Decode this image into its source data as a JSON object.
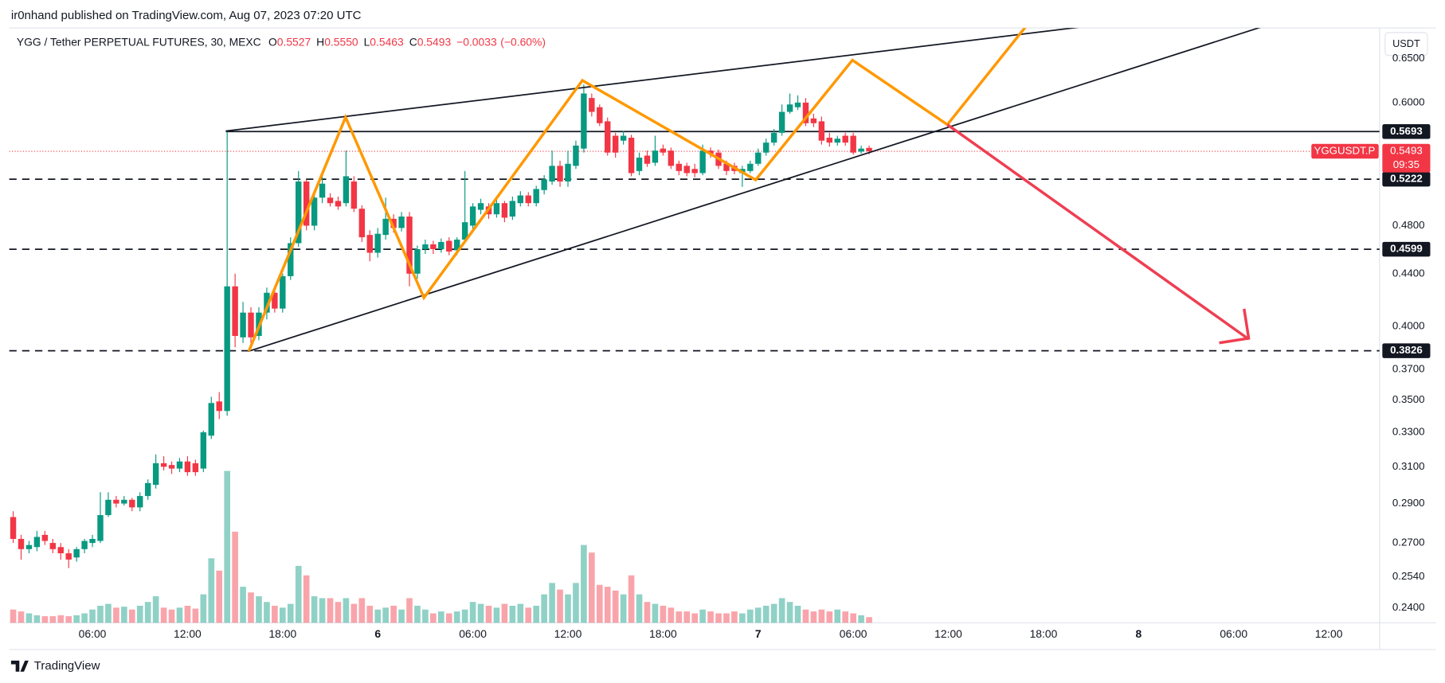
{
  "header": {
    "text": "ir0nhand published on TradingView.com, Aug 07, 2023 07:20 UTC"
  },
  "footer": {
    "logo": "TradingView"
  },
  "chart_data": {
    "type": "candlestick",
    "symbol": "YGG / Tether PERPETUAL FUTURES, 30, MEXC",
    "legend": [
      {
        "key": "O",
        "value": 0.5527
      },
      {
        "key": "H",
        "value": {
          "value": 0.555,
          "label": "0.5550"
        }
      },
      {
        "key": "L",
        "value": 0.5463
      },
      {
        "key": "C",
        "value": 0.5493
      }
    ],
    "change": {
      "value": -0.0033,
      "label": "−0.0033"
    },
    "change_pct": {
      "value": -0.6,
      "label": "(−0.60%)"
    },
    "currency": "USDT",
    "log_scale": true,
    "grid": false,
    "up_color": "#089981",
    "down_color": "#f23645",
    "ylim": [
      0.2336,
      0.687
    ],
    "yticks": [
      {
        "value": 0.65,
        "label": "0.6500"
      },
      {
        "value": 0.6,
        "label": "0.6000"
      },
      {
        "value": 0.48,
        "label": "0.4800"
      },
      {
        "value": 0.44,
        "label": "0.4400"
      },
      {
        "value": 0.4,
        "label": "0.4000"
      },
      {
        "value": 0.37,
        "label": "0.3700"
      },
      {
        "value": 0.35,
        "label": "0.3500"
      },
      {
        "value": 0.33,
        "label": "0.3300"
      },
      {
        "value": 0.31,
        "label": "0.3100"
      },
      {
        "value": 0.29,
        "label": "0.2900"
      },
      {
        "value": 0.27,
        "label": "0.2700"
      },
      {
        "value": 0.254,
        "label": "0.2540"
      },
      {
        "value": 0.24,
        "label": "0.2400"
      }
    ],
    "levels": [
      {
        "value": 0.5693,
        "style": "solid"
      },
      {
        "value": 0.5222,
        "style": "dashed"
      },
      {
        "value": 0.4599,
        "style": "dashed"
      },
      {
        "value": 0.3826,
        "style": "dashed"
      }
    ],
    "last_price": {
      "value": 0.5493,
      "name": "YGGUSDT.P",
      "countdown": "09:35"
    },
    "categories": [
      null,
      null,
      null,
      null,
      null,
      null,
      null,
      null,
      null,
      null,
      "06:00",
      null,
      null,
      null,
      null,
      null,
      null,
      null,
      null,
      null,
      null,
      null,
      "12:00",
      null,
      null,
      null,
      null,
      null,
      null,
      null,
      null,
      null,
      null,
      null,
      "18:00",
      null,
      null,
      null,
      null,
      null,
      null,
      null,
      null,
      null,
      null,
      null,
      "6",
      null,
      null,
      null,
      null,
      null,
      null,
      null,
      null,
      null,
      null,
      null,
      "06:00",
      null,
      null,
      null,
      null,
      null,
      null,
      null,
      null,
      null,
      null,
      null,
      "12:00",
      null,
      null,
      null,
      null,
      null,
      null,
      null,
      null,
      null,
      null,
      null,
      "18:00",
      null,
      null,
      null,
      null,
      null,
      null,
      null,
      null,
      null,
      null,
      null,
      "7",
      null,
      null,
      null,
      null,
      null,
      null,
      null,
      null,
      null,
      null,
      null,
      "06:00",
      null,
      null,
      null,
      null,
      null,
      null,
      null,
      null,
      null,
      null,
      null,
      "12:00",
      null,
      null,
      null,
      null,
      null,
      null,
      null,
      null,
      null,
      null,
      null,
      "18:00",
      null,
      null,
      null,
      null,
      null,
      null,
      null,
      null,
      null,
      null,
      null,
      "8",
      null,
      null,
      null,
      null,
      null,
      null,
      null,
      null,
      null,
      null,
      null,
      "06:00",
      null,
      null,
      null,
      null,
      null,
      null,
      null,
      null,
      null,
      null,
      null,
      "12:00",
      null,
      null,
      null,
      null,
      null
    ],
    "open": [
      0.283,
      0.272,
      0.267,
      0.268,
      0.274,
      0.27,
      0.268,
      0.265,
      0.263,
      0.267,
      0.27,
      0.271,
      0.284,
      0.292,
      0.29,
      0.292,
      0.288,
      0.294,
      0.3,
      0.312,
      0.311,
      0.309,
      0.313,
      0.312,
      0.309,
      0.328,
      0.349,
      0.343,
      0.43,
      0.392,
      0.41,
      0.393,
      0.41,
      0.425,
      0.413,
      0.438,
      0.465,
      0.52,
      0.48,
      0.505,
      0.505,
      0.502,
      0.5,
      0.52,
      0.495,
      0.472,
      0.457,
      0.472,
      0.486,
      0.478,
      0.488,
      0.44,
      0.46,
      0.464,
      0.46,
      0.467,
      0.459,
      0.468,
      0.48,
      0.494,
      0.497,
      0.49,
      0.5,
      0.488,
      0.5,
      0.507,
      0.5,
      0.512,
      0.52,
      0.535,
      0.52,
      0.535,
      0.552,
      0.605,
      0.595,
      0.58,
      0.565,
      0.56,
      0.563,
      0.53,
      0.545,
      0.538,
      0.552,
      0.55,
      0.537,
      0.535,
      0.532,
      0.528,
      0.55,
      0.548,
      0.537,
      0.535,
      0.528,
      0.53,
      0.537,
      0.548,
      0.558,
      0.568,
      0.59,
      0.595,
      0.6,
      0.583,
      0.58,
      0.563,
      0.558,
      0.565,
      0.565,
      0.549,
      0.5527,
      null,
      null,
      null,
      null,
      null,
      null,
      null,
      null,
      null,
      null,
      null,
      null,
      null,
      null,
      null,
      null,
      null,
      null,
      null,
      null,
      null,
      null,
      null,
      null,
      null,
      null,
      null,
      null,
      null,
      null,
      null,
      null,
      null,
      null,
      null,
      null,
      null,
      null,
      null,
      null,
      null,
      null,
      null,
      null,
      null,
      null,
      null,
      null,
      null,
      null,
      null,
      null,
      null,
      null,
      null,
      null,
      null,
      null,
      null,
      null,
      null,
      null,
      null
    ],
    "high": [
      0.286,
      0.274,
      0.271,
      0.276,
      0.276,
      0.272,
      0.27,
      0.267,
      0.268,
      0.272,
      0.274,
      0.296,
      0.296,
      0.294,
      0.294,
      0.293,
      0.296,
      0.303,
      0.317,
      0.316,
      0.313,
      0.315,
      0.316,
      0.314,
      0.331,
      0.352,
      0.355,
      0.5693,
      0.44,
      0.418,
      0.414,
      0.414,
      0.429,
      0.43,
      0.44,
      0.47,
      0.53,
      0.522,
      0.51,
      0.53,
      0.509,
      0.506,
      0.55,
      0.525,
      0.498,
      0.476,
      0.478,
      0.505,
      0.49,
      0.492,
      0.492,
      0.463,
      0.468,
      0.467,
      0.469,
      0.47,
      0.47,
      0.53,
      0.5,
      0.504,
      0.5,
      0.503,
      0.502,
      0.506,
      0.511,
      0.51,
      0.516,
      0.526,
      0.55,
      0.54,
      0.55,
      0.56,
      0.62,
      0.61,
      0.598,
      0.584,
      0.568,
      0.57,
      0.566,
      0.548,
      0.55,
      0.565,
      0.556,
      0.553,
      0.54,
      0.538,
      0.537,
      0.556,
      0.553,
      0.551,
      0.54,
      0.538,
      0.535,
      0.54,
      0.552,
      0.562,
      0.572,
      0.598,
      0.61,
      0.608,
      0.605,
      0.588,
      0.585,
      0.568,
      0.565,
      0.568,
      0.568,
      0.555,
      0.555,
      null,
      null,
      null,
      null,
      null,
      null,
      null,
      null,
      null,
      null,
      null,
      null,
      null,
      null,
      null,
      null,
      null,
      null,
      null,
      null,
      null,
      null,
      null,
      null,
      null,
      null,
      null,
      null,
      null,
      null,
      null,
      null,
      null,
      null,
      null,
      null,
      null,
      null,
      null,
      null,
      null,
      null,
      null,
      null,
      null,
      null,
      null,
      null,
      null,
      null,
      null,
      null,
      null,
      null,
      null,
      null,
      null,
      null,
      null,
      null,
      null,
      null,
      null
    ],
    "low": [
      0.27,
      0.262,
      0.265,
      0.266,
      0.269,
      0.265,
      0.262,
      0.258,
      0.261,
      0.265,
      0.268,
      0.27,
      0.283,
      0.288,
      0.289,
      0.286,
      0.286,
      0.292,
      0.298,
      0.308,
      0.306,
      0.307,
      0.305,
      0.305,
      0.307,
      0.326,
      0.338,
      0.34,
      0.385,
      0.388,
      0.388,
      0.39,
      0.405,
      0.41,
      0.41,
      0.435,
      0.462,
      0.476,
      0.476,
      0.5,
      0.497,
      0.494,
      0.497,
      0.492,
      0.466,
      0.45,
      0.453,
      0.468,
      0.474,
      0.475,
      0.43,
      0.436,
      0.456,
      0.456,
      0.457,
      0.455,
      0.455,
      0.465,
      0.476,
      0.49,
      0.486,
      0.487,
      0.483,
      0.485,
      0.497,
      0.497,
      0.497,
      0.508,
      0.517,
      0.515,
      0.515,
      0.532,
      0.548,
      0.585,
      0.575,
      0.545,
      0.543,
      0.556,
      0.525,
      0.526,
      0.534,
      0.535,
      0.545,
      0.532,
      0.526,
      0.525,
      0.524,
      0.526,
      0.543,
      0.532,
      0.526,
      0.527,
      0.515,
      0.528,
      0.535,
      0.545,
      0.555,
      0.565,
      0.588,
      0.592,
      0.575,
      0.574,
      0.556,
      0.554,
      0.555,
      0.555,
      0.546,
      0.547,
      0.5463,
      null,
      null,
      null,
      null,
      null,
      null,
      null,
      null,
      null,
      null,
      null,
      null,
      null,
      null,
      null,
      null,
      null,
      null,
      null,
      null,
      null,
      null,
      null,
      null,
      null,
      null,
      null,
      null,
      null,
      null,
      null,
      null,
      null,
      null,
      null,
      null,
      null,
      null,
      null,
      null,
      null,
      null,
      null,
      null,
      null,
      null,
      null,
      null,
      null,
      null,
      null,
      null,
      null,
      null,
      null,
      null,
      null,
      null,
      null,
      null,
      null,
      null,
      null
    ],
    "close": [
      0.272,
      0.267,
      0.269,
      0.273,
      0.271,
      0.267,
      0.265,
      0.262,
      0.267,
      0.271,
      0.272,
      0.284,
      0.292,
      0.29,
      0.292,
      0.288,
      0.294,
      0.301,
      0.312,
      0.31,
      0.309,
      0.313,
      0.307,
      0.307,
      0.33,
      0.348,
      0.343,
      0.43,
      0.393,
      0.41,
      0.392,
      0.41,
      0.425,
      0.413,
      0.438,
      0.465,
      0.52,
      0.48,
      0.505,
      0.518,
      0.5,
      0.497,
      0.525,
      0.495,
      0.47,
      0.457,
      0.473,
      0.486,
      0.478,
      0.488,
      0.44,
      0.46,
      0.464,
      0.46,
      0.466,
      0.458,
      0.468,
      0.483,
      0.497,
      0.5,
      0.49,
      0.5,
      0.487,
      0.502,
      0.507,
      0.5,
      0.513,
      0.522,
      0.535,
      0.52,
      0.537,
      0.555,
      0.61,
      0.59,
      0.578,
      0.548,
      0.548,
      0.565,
      0.528,
      0.543,
      0.537,
      0.55,
      0.548,
      0.535,
      0.53,
      0.528,
      0.528,
      0.55,
      0.547,
      0.535,
      0.53,
      0.53,
      0.532,
      0.537,
      0.548,
      0.558,
      0.568,
      0.59,
      0.598,
      0.6,
      0.578,
      0.578,
      0.56,
      0.558,
      0.562,
      0.558,
      0.548,
      0.552,
      0.5493,
      null,
      null,
      null,
      null,
      null,
      null,
      null,
      null,
      null,
      null,
      null,
      null,
      null,
      null,
      null,
      null,
      null,
      null,
      null,
      null,
      null,
      null,
      null,
      null,
      null,
      null,
      null,
      null,
      null,
      null,
      null,
      null,
      null,
      null,
      null,
      null,
      null,
      null,
      null,
      null,
      null,
      null,
      null,
      null,
      null,
      null,
      null,
      null,
      null,
      null,
      null,
      null,
      null,
      null,
      null,
      null,
      null,
      null,
      null,
      null,
      null,
      null,
      null
    ],
    "volume": [
      14,
      12,
      10,
      8,
      7,
      7,
      8,
      7,
      8,
      10,
      14,
      18,
      20,
      16,
      17,
      14,
      18,
      22,
      28,
      16,
      14,
      16,
      18,
      15,
      30,
      68,
      55,
      160,
      96,
      38,
      32,
      28,
      22,
      18,
      16,
      20,
      60,
      50,
      28,
      26,
      26,
      22,
      26,
      20,
      26,
      18,
      14,
      16,
      18,
      14,
      26,
      18,
      14,
      10,
      12,
      10,
      12,
      14,
      22,
      20,
      18,
      16,
      20,
      18,
      20,
      16,
      18,
      30,
      42,
      35,
      30,
      42,
      82,
      74,
      40,
      38,
      34,
      30,
      50,
      30,
      22,
      20,
      18,
      16,
      12,
      12,
      10,
      14,
      12,
      10,
      10,
      12,
      10,
      14,
      16,
      18,
      20,
      26,
      22,
      18,
      14,
      12,
      14,
      12,
      14,
      12,
      10,
      8,
      6,
      null,
      null,
      null,
      null,
      null,
      null,
      null,
      null,
      null,
      null,
      null,
      null,
      null,
      null,
      null,
      null,
      null,
      null,
      null,
      null,
      null,
      null,
      null,
      null,
      null,
      null,
      null,
      null,
      null,
      null,
      null,
      null,
      null,
      null,
      null,
      null,
      null,
      null,
      null,
      null,
      null,
      null,
      null,
      null,
      null,
      null,
      null,
      null,
      null,
      null,
      null,
      null,
      null,
      null,
      null,
      null,
      null,
      null,
      null,
      null,
      null,
      null,
      null
    ]
  }
}
